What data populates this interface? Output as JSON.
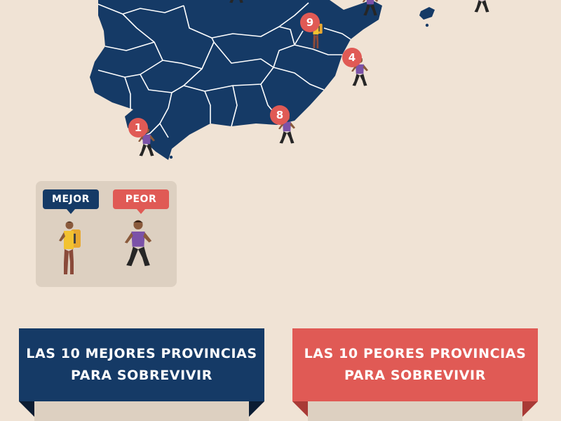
{
  "map": {
    "region": "Península Ibérica — España (sur y este)",
    "land_color": "#153a66",
    "border_color": "#ffffff",
    "background_color": "#f0e3d5",
    "marker_color": "#e05a55",
    "markers": [
      {
        "id": "marker-1",
        "label": "1"
      },
      {
        "id": "marker-4",
        "label": "4"
      },
      {
        "id": "marker-8",
        "label": "8"
      },
      {
        "id": "marker-9",
        "label": "9"
      }
    ]
  },
  "legend": {
    "best_label": "MEJOR",
    "worst_label": "PEOR",
    "best_color": "#153a66",
    "worst_color": "#e05a55",
    "best_icon": "explorer-figure-icon",
    "worst_icon": "zombie-figure-icon"
  },
  "banners": {
    "best": {
      "line1": "LAS 10 MEJORES PROVINCIAS",
      "line2": "PARA SOBREVIVIR",
      "color": "#153a66"
    },
    "worst": {
      "line1": "LAS 10 PEORES PROVINCIAS",
      "line2": "PARA SOBREVIVIR",
      "color": "#e05a55"
    }
  }
}
